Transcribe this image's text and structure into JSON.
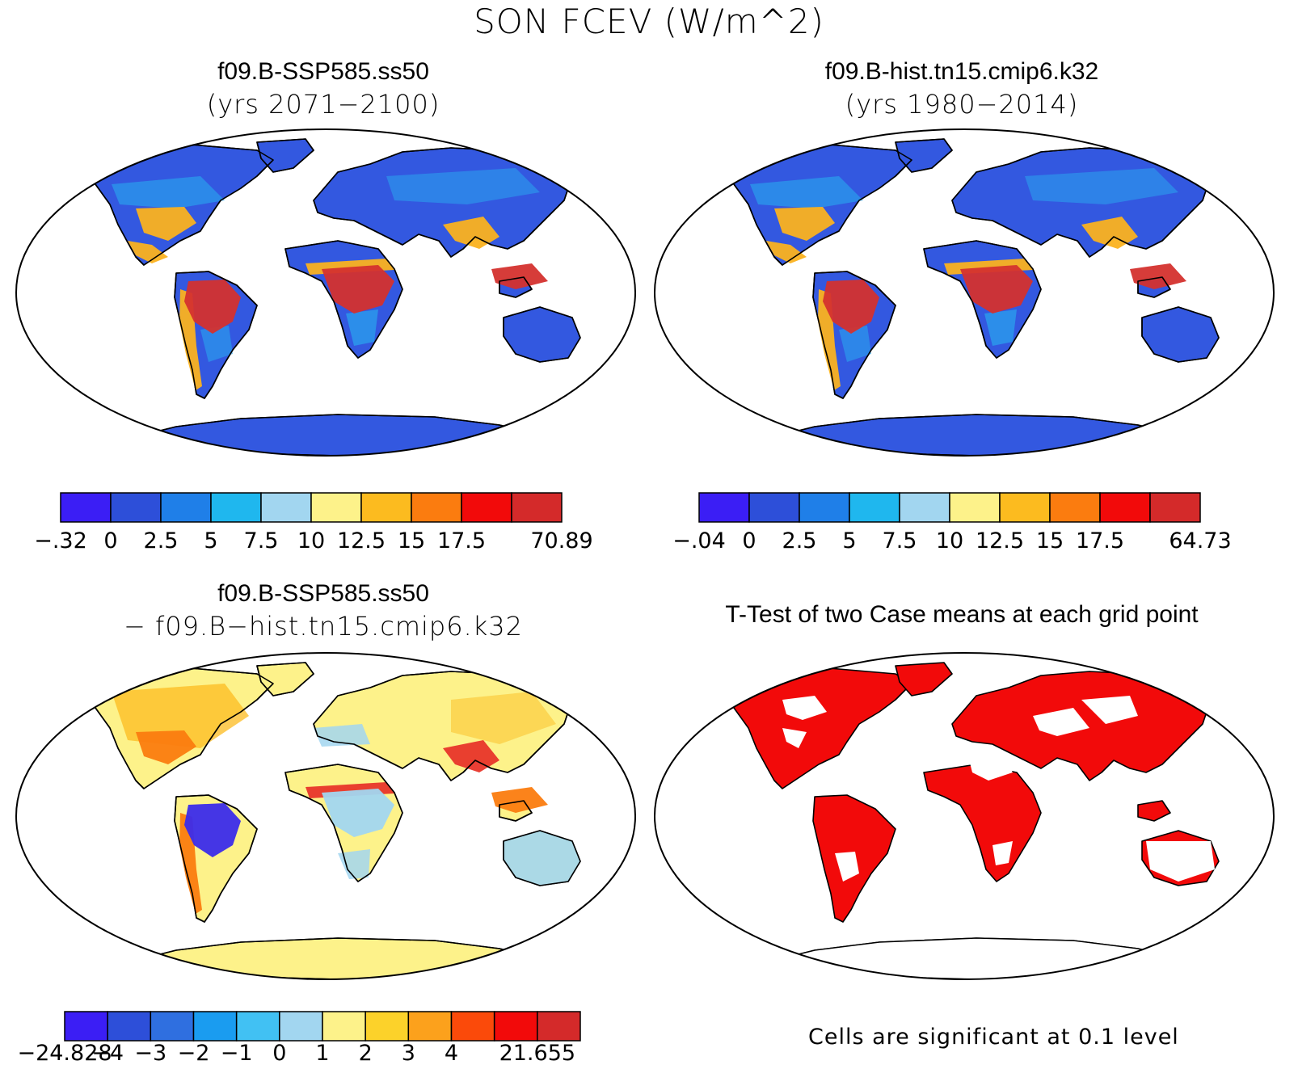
{
  "figure": {
    "title": "SON FCEV (W/m^2)"
  },
  "panels": [
    {
      "id": "future",
      "title": "f09.B-SSP585.ss50",
      "subtitle": "(yrs 2071−2100)",
      "legend": {
        "colors": [
          "#3b1ef5",
          "#2d4fd9",
          "#1f7fe8",
          "#1fb7ee",
          "#a2d6f0",
          "#fdf28a",
          "#fcbb1f",
          "#fb7c0f",
          "#f20a0a",
          "#d42a2a"
        ],
        "labels": [
          "−.32",
          "0",
          "2.5",
          "5",
          "7.5",
          "10",
          "12.5",
          "15",
          "17.5",
          "",
          "70.89"
        ]
      },
      "map_colors": {
        "ocean": "#ffffff",
        "base": "#3358e0",
        "mid": "#2aa5ee",
        "warm": "#fbb21f",
        "hot": "#d4312e",
        "cold": "#3358e0"
      }
    },
    {
      "id": "historical",
      "title": "f09.B-hist.tn15.cmip6.k32",
      "subtitle": "(yrs 1980−2014)",
      "legend": {
        "colors": [
          "#3b1ef5",
          "#2d4fd9",
          "#1f7fe8",
          "#1fb7ee",
          "#a2d6f0",
          "#fdf28a",
          "#fcbb1f",
          "#fb7c0f",
          "#f20a0a",
          "#d42a2a"
        ],
        "labels": [
          "−.04",
          "0",
          "2.5",
          "5",
          "7.5",
          "10",
          "12.5",
          "15",
          "17.5",
          "",
          "64.73"
        ]
      },
      "map_colors": {
        "ocean": "#ffffff",
        "base": "#3358e0",
        "mid": "#2aa5ee",
        "warm": "#fbb21f",
        "hot": "#d4312e",
        "cold": "#3358e0"
      }
    },
    {
      "id": "difference",
      "title": "f09.B-SSP585.ss50",
      "subtitle": "− f09.B−hist.tn15.cmip6.k32",
      "legend": {
        "colors": [
          "#3b1ef5",
          "#2d4fd9",
          "#2f6fe0",
          "#1a9cf0",
          "#41c1f3",
          "#a2d6f0",
          "#fdf28a",
          "#fcd22a",
          "#fca11c",
          "#fb4a0a",
          "#f20a0a",
          "#d42a2a"
        ],
        "labels": [
          "−24.828",
          "−4",
          "−3",
          "−2",
          "−1",
          "0",
          "1",
          "2",
          "3",
          "4",
          "",
          "21.655"
        ]
      },
      "map_colors": {
        "ocean": "#ffffff",
        "base": "#fdf28a",
        "mid": "#fcbb1f",
        "warm": "#fb7c0f",
        "hot": "#e8352a",
        "cold": "#3b2bea",
        "cool": "#a2d6f0"
      }
    },
    {
      "id": "ttest",
      "title": "T-Test of two Case means at each grid point",
      "subtitle": "",
      "note": "Cells are significant at 0.1 level",
      "map_colors": {
        "ocean": "#ffffff",
        "base": "#f20a0a"
      }
    }
  ]
}
